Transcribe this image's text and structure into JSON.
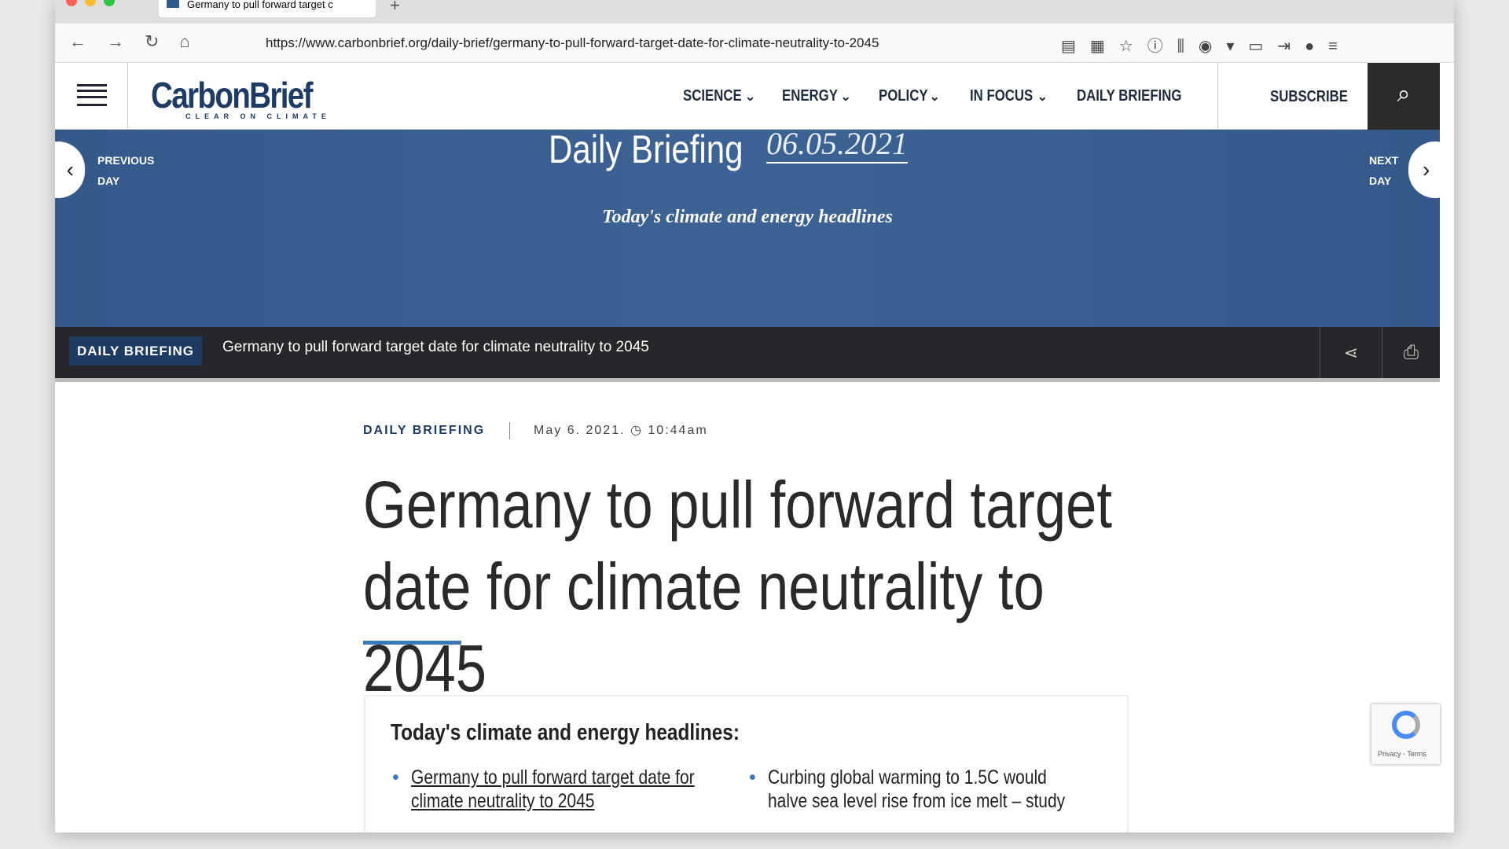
{
  "browser": {
    "tab_title": "Germany to pull forward target c",
    "url": "https://www.carbonbrief.org/daily-brief/germany-to-pull-forward-target-date-for-climate-neutrality-to-2045"
  },
  "header": {
    "logo": "CarbonBrief",
    "tagline": "CLEAR ON CLIMATE",
    "nav": [
      "SCIENCE",
      "ENERGY",
      "POLICY",
      "IN FOCUS",
      "DAILY BRIEFING"
    ],
    "subscribe": "SUBSCRIBE"
  },
  "hero": {
    "title": "Daily Briefing",
    "date": "06.05.2021",
    "subtitle": "Today's climate and energy headlines",
    "previous": [
      "PREVIOUS",
      "DAY"
    ],
    "next": [
      "NEXT",
      "DAY"
    ]
  },
  "breadcrumb": {
    "badge": "DAILY BRIEFING",
    "headline": "Germany to pull forward target date for climate neutrality to 2045"
  },
  "article": {
    "category": "DAILY BRIEFING",
    "date": "May 6. 2021.",
    "time": "10:44am",
    "title": "Germany to pull forward target date for climate neutrality to 2045"
  },
  "headlines": {
    "heading": "Today's climate and energy headlines:",
    "items": [
      "Germany to pull forward target date for climate neutrality to 2045",
      "Curbing global warming to 1.5C would halve sea level rise from ice melt – study"
    ]
  },
  "recaptcha": {
    "label": "Privacy - Terms"
  }
}
